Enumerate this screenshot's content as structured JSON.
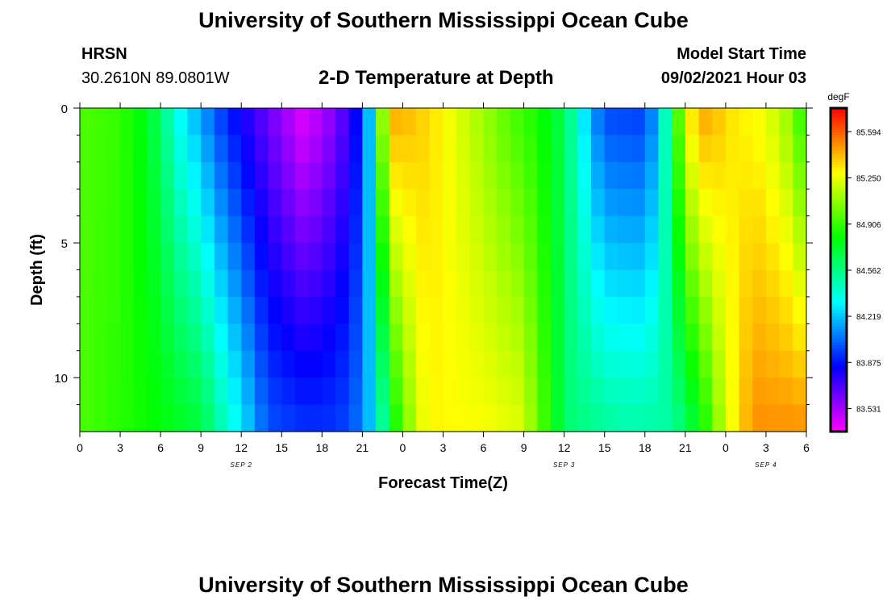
{
  "page": {
    "title_top": "University of Southern Mississippi Ocean Cube",
    "title_bottom": "University of Southern Mississippi Ocean Cube",
    "station": "HRSN",
    "location": "30.2610N  89.0801W",
    "subtitle": "2-D Temperature at Depth",
    "model_start_label": "Model Start Time",
    "model_start_value": "09/02/2021 Hour 03"
  },
  "chart_data": {
    "type": "heatmap",
    "title": "2-D Temperature at Depth",
    "xlabel": "Forecast Time(Z)",
    "ylabel": "Depth (ft)",
    "x_hours_range": [
      0,
      54
    ],
    "x_tick_labels": [
      "0",
      "3",
      "6",
      "9",
      "12",
      "15",
      "18",
      "21",
      "0",
      "3",
      "6",
      "9",
      "12",
      "15",
      "18",
      "21",
      "0",
      "3",
      "6"
    ],
    "date_labels": [
      {
        "label": "SEP 2",
        "hour": 12
      },
      {
        "label": "SEP 3",
        "hour": 36
      },
      {
        "label": "SEP 4",
        "hour": 51
      }
    ],
    "y_range": [
      0,
      12
    ],
    "y_major_ticks": [
      0,
      5,
      10
    ],
    "y_minor_ticks": [
      1,
      2,
      3,
      4,
      6,
      7,
      8,
      9,
      11
    ],
    "colorbar": {
      "unit": "degF",
      "min": 83.36,
      "max": 85.77,
      "tick_values": [
        "85.594",
        "85.250",
        "84.906",
        "84.562",
        "84.219",
        "83.875",
        "83.531"
      ]
    },
    "surface_temperature_by_hour": [
      [
        0,
        84.95
      ],
      [
        3,
        84.9
      ],
      [
        5,
        84.75
      ],
      [
        6,
        84.6
      ],
      [
        7,
        84.4
      ],
      [
        8,
        84.25
      ],
      [
        9,
        84.15
      ],
      [
        10,
        84.0
      ],
      [
        12,
        83.8
      ],
      [
        15,
        83.55
      ],
      [
        16.5,
        83.42
      ],
      [
        18,
        83.5
      ],
      [
        20,
        83.72
      ],
      [
        21,
        83.95
      ],
      [
        21.5,
        84.2
      ],
      [
        22,
        84.55
      ],
      [
        22.5,
        85.1
      ],
      [
        23.5,
        85.45
      ],
      [
        25,
        85.4
      ],
      [
        27,
        85.3
      ],
      [
        30,
        85.1
      ],
      [
        32,
        84.95
      ],
      [
        34,
        84.85
      ],
      [
        36,
        84.65
      ],
      [
        37,
        84.4
      ],
      [
        38,
        84.15
      ],
      [
        39,
        83.98
      ],
      [
        42,
        83.95
      ],
      [
        43,
        84.2
      ],
      [
        44,
        84.7
      ],
      [
        45,
        85.25
      ],
      [
        46,
        85.45
      ],
      [
        47,
        85.45
      ],
      [
        48,
        85.35
      ],
      [
        51,
        85.25
      ],
      [
        53,
        85.05
      ],
      [
        54,
        84.8
      ]
    ],
    "bottom_temperature_by_hour": [
      [
        0,
        84.95
      ],
      [
        6,
        84.8
      ],
      [
        9,
        84.7
      ],
      [
        10,
        84.55
      ],
      [
        11,
        84.42
      ],
      [
        12,
        84.3
      ],
      [
        13,
        84.15
      ],
      [
        14,
        84.0
      ],
      [
        16,
        83.95
      ],
      [
        18,
        83.93
      ],
      [
        20,
        83.98
      ],
      [
        21,
        84.1
      ],
      [
        22,
        84.3
      ],
      [
        22.5,
        84.5
      ],
      [
        23,
        84.75
      ],
      [
        24,
        84.95
      ],
      [
        25,
        85.2
      ],
      [
        26,
        85.3
      ],
      [
        30,
        85.28
      ],
      [
        33,
        85.22
      ],
      [
        34,
        85.0
      ],
      [
        35,
        84.85
      ],
      [
        36,
        84.6
      ],
      [
        40,
        84.5
      ],
      [
        44,
        84.5
      ],
      [
        46,
        84.75
      ],
      [
        48,
        85.2
      ],
      [
        50,
        85.5
      ],
      [
        54,
        85.5
      ]
    ]
  }
}
